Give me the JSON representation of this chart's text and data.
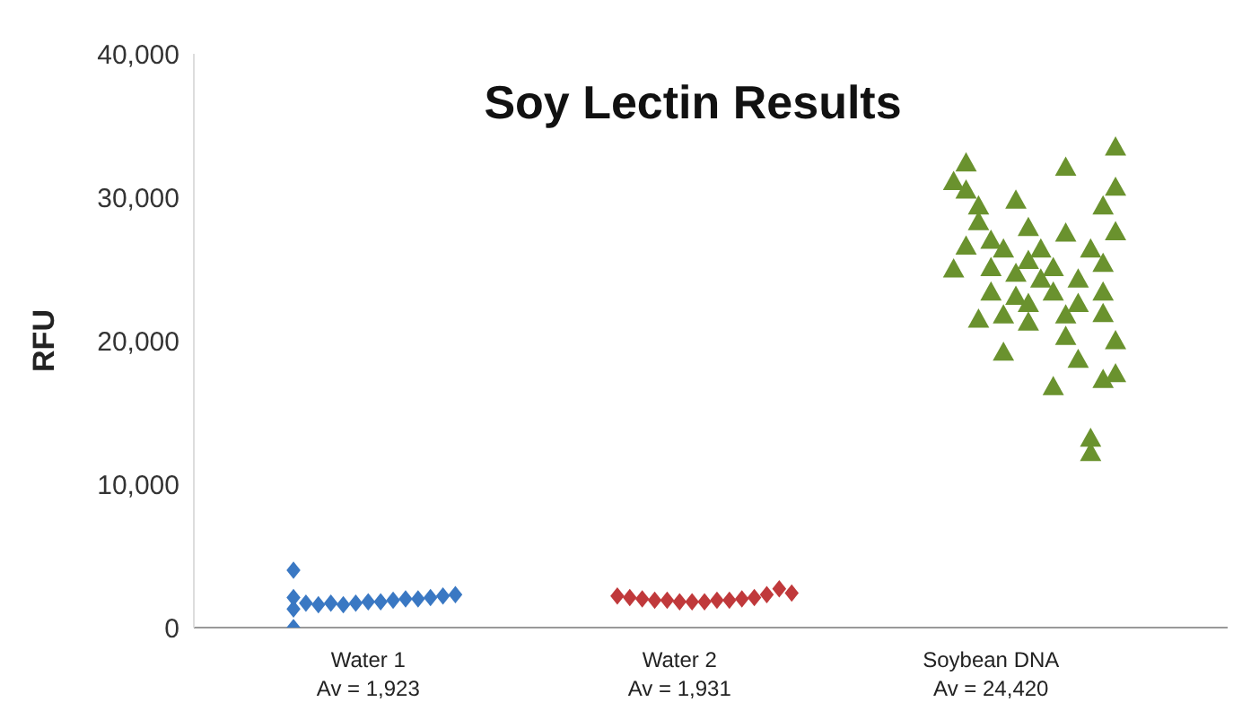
{
  "chart_data": {
    "type": "scatter",
    "title": "Soy Lectin Results",
    "ylabel": "RFU",
    "categories": [
      null,
      null,
      null,
      null,
      null,
      null,
      null,
      null,
      null,
      null,
      null,
      null,
      "Water 1\nAv = 1,923",
      null,
      null,
      null,
      null,
      null,
      null,
      null,
      null,
      null,
      null,
      null,
      null,
      null,
      null,
      null,
      null,
      null,
      null,
      null,
      null,
      null,
      null,
      null,
      null,
      "Water 2\nAv = 1,931",
      null,
      null,
      null,
      null,
      null,
      null,
      null,
      null,
      null,
      null,
      null,
      null,
      null,
      null,
      null,
      null,
      null,
      null,
      null,
      null,
      null,
      null,
      null,
      null,
      "Soybean DNA\nAv = 24,420",
      null,
      null,
      null,
      null,
      null,
      null,
      null,
      null,
      null,
      null,
      null,
      null
    ],
    "ylim": [
      0,
      40000
    ],
    "yticks": [
      {
        "value": 0,
        "label": "0"
      },
      {
        "value": 10000,
        "label": "10,000"
      },
      {
        "value": 20000,
        "label": "20,000"
      },
      {
        "value": 30000,
        "label": "30,000"
      },
      {
        "value": 40000,
        "label": "40,000"
      }
    ],
    "grid": false,
    "legend": false,
    "series": [
      {
        "color": "#3a78c3",
        "marker": "diamond",
        "values": [
          null,
          null,
          null,
          null,
          null,
          null,
          2100,
          1700,
          1600,
          1700,
          1600,
          1700,
          1800,
          1800,
          1900,
          2000,
          2000,
          2100,
          2200,
          2300,
          null,
          null,
          null,
          null,
          null,
          null,
          null,
          null,
          null,
          null,
          null,
          null,
          null,
          null,
          null,
          null,
          null,
          null,
          null,
          null,
          null,
          null,
          null,
          null,
          null,
          null,
          null,
          null,
          null,
          null,
          null,
          null,
          null,
          null,
          null,
          null,
          null,
          null,
          null,
          null,
          null,
          null,
          null,
          null,
          null,
          null,
          null,
          null,
          null,
          null,
          null,
          null,
          null,
          null,
          null
        ]
      },
      {
        "color": "#3a78c3",
        "marker": "diamond",
        "values": [
          null,
          null,
          null,
          null,
          null,
          null,
          4000,
          null,
          null,
          null,
          null,
          null,
          null,
          null,
          null,
          null,
          null,
          null,
          null,
          null,
          null,
          null,
          null,
          null,
          null,
          null,
          null,
          null,
          null,
          null,
          null,
          null,
          null,
          null,
          null,
          null,
          null,
          null,
          null,
          null,
          null,
          null,
          null,
          null,
          null,
          null,
          null,
          null,
          null,
          null,
          null,
          null,
          null,
          null,
          null,
          null,
          null,
          null,
          null,
          null,
          null,
          null,
          null,
          null,
          null,
          null,
          null,
          null,
          null,
          null,
          null,
          null,
          null,
          null,
          null
        ]
      },
      {
        "color": "#3a78c3",
        "marker": "diamond",
        "values": [
          null,
          null,
          null,
          null,
          null,
          null,
          1300,
          null,
          null,
          null,
          null,
          null,
          null,
          null,
          null,
          null,
          null,
          null,
          null,
          null,
          null,
          null,
          null,
          null,
          null,
          null,
          null,
          null,
          null,
          null,
          null,
          null,
          null,
          null,
          null,
          null,
          null,
          null,
          null,
          null,
          null,
          null,
          null,
          null,
          null,
          null,
          null,
          null,
          null,
          null,
          null,
          null,
          null,
          null,
          null,
          null,
          null,
          null,
          null,
          null,
          null,
          null,
          null,
          null,
          null,
          null,
          null,
          null,
          null,
          null,
          null,
          null,
          null,
          null,
          null
        ]
      },
      {
        "color": "#3a78c3",
        "marker": "diamond",
        "values": [
          null,
          null,
          null,
          null,
          null,
          null,
          0,
          null,
          null,
          null,
          null,
          null,
          null,
          null,
          null,
          null,
          null,
          null,
          null,
          null,
          null,
          null,
          null,
          null,
          null,
          null,
          null,
          null,
          null,
          null,
          null,
          null,
          null,
          null,
          null,
          null,
          null,
          null,
          null,
          null,
          null,
          null,
          null,
          null,
          null,
          null,
          null,
          null,
          null,
          null,
          null,
          null,
          null,
          null,
          null,
          null,
          null,
          null,
          null,
          null,
          null,
          null,
          null,
          null,
          null,
          null,
          null,
          null,
          null,
          null,
          null,
          null,
          null,
          null,
          null
        ]
      },
      {
        "color": "#c0393b",
        "marker": "diamond",
        "values": [
          null,
          null,
          null,
          null,
          null,
          null,
          null,
          null,
          null,
          null,
          null,
          null,
          null,
          null,
          null,
          null,
          null,
          null,
          null,
          null,
          null,
          null,
          null,
          null,
          null,
          null,
          null,
          null,
          null,
          null,
          null,
          null,
          2200,
          2100,
          2000,
          1900,
          1900,
          1800,
          1800,
          1800,
          1900,
          1900,
          2000,
          2100,
          2300,
          2700,
          2400,
          null,
          null,
          null,
          null,
          null,
          null,
          null,
          null,
          null,
          null,
          null,
          null,
          null,
          null,
          null,
          null,
          null,
          null,
          null,
          null,
          null,
          null,
          null,
          null,
          null,
          null,
          null,
          null
        ]
      },
      {
        "color": "#6a922e",
        "marker": "triangle",
        "values": [
          null,
          null,
          null,
          null,
          null,
          null,
          null,
          null,
          null,
          null,
          null,
          null,
          null,
          null,
          null,
          null,
          null,
          null,
          null,
          null,
          null,
          null,
          null,
          null,
          null,
          null,
          null,
          null,
          null,
          null,
          null,
          null,
          null,
          null,
          null,
          null,
          null,
          null,
          null,
          null,
          null,
          null,
          null,
          null,
          null,
          null,
          null,
          null,
          null,
          null,
          null,
          null,
          null,
          null,
          null,
          null,
          null,
          null,
          null,
          31100,
          32400,
          29400,
          27000,
          19200,
          29800,
          27900,
          26400,
          25100,
          32100,
          24300,
          26400,
          29400,
          33500,
          null,
          null
        ]
      },
      {
        "color": "#6a922e",
        "marker": "triangle",
        "values": [
          null,
          null,
          null,
          null,
          null,
          null,
          null,
          null,
          null,
          null,
          null,
          null,
          null,
          null,
          null,
          null,
          null,
          null,
          null,
          null,
          null,
          null,
          null,
          null,
          null,
          null,
          null,
          null,
          null,
          null,
          null,
          null,
          null,
          null,
          null,
          null,
          null,
          null,
          null,
          null,
          null,
          null,
          null,
          null,
          null,
          null,
          null,
          null,
          null,
          null,
          null,
          null,
          null,
          null,
          null,
          null,
          null,
          null,
          null,
          25000,
          30500,
          28300,
          25100,
          26400,
          23100,
          25600,
          24300,
          23400,
          27500,
          18700,
          13200,
          25400,
          30700,
          null,
          null
        ]
      },
      {
        "color": "#6a922e",
        "marker": "triangle",
        "values": [
          null,
          null,
          null,
          null,
          null,
          null,
          null,
          null,
          null,
          null,
          null,
          null,
          null,
          null,
          null,
          null,
          null,
          null,
          null,
          null,
          null,
          null,
          null,
          null,
          null,
          null,
          null,
          null,
          null,
          null,
          null,
          null,
          null,
          null,
          null,
          null,
          null,
          null,
          null,
          null,
          null,
          null,
          null,
          null,
          null,
          null,
          null,
          null,
          null,
          null,
          null,
          null,
          null,
          null,
          null,
          null,
          null,
          null,
          null,
          null,
          26600,
          21500,
          23400,
          21800,
          24700,
          22600,
          null,
          16800,
          20300,
          22600,
          12200,
          23400,
          27600,
          null,
          null
        ]
      },
      {
        "color": "#6a922e",
        "marker": "triangle",
        "values": [
          null,
          null,
          null,
          null,
          null,
          null,
          null,
          null,
          null,
          null,
          null,
          null,
          null,
          null,
          null,
          null,
          null,
          null,
          null,
          null,
          null,
          null,
          null,
          null,
          null,
          null,
          null,
          null,
          null,
          null,
          null,
          null,
          null,
          null,
          null,
          null,
          null,
          null,
          null,
          null,
          null,
          null,
          null,
          null,
          null,
          null,
          null,
          null,
          null,
          null,
          null,
          null,
          null,
          null,
          null,
          null,
          null,
          null,
          null,
          null,
          null,
          null,
          null,
          null,
          null,
          21300,
          null,
          null,
          21800,
          null,
          null,
          21900,
          20000,
          null,
          null
        ]
      },
      {
        "color": "#6a922e",
        "marker": "triangle",
        "values": [
          null,
          null,
          null,
          null,
          null,
          null,
          null,
          null,
          null,
          null,
          null,
          null,
          null,
          null,
          null,
          null,
          null,
          null,
          null,
          null,
          null,
          null,
          null,
          null,
          null,
          null,
          null,
          null,
          null,
          null,
          null,
          null,
          null,
          null,
          null,
          null,
          null,
          null,
          null,
          null,
          null,
          null,
          null,
          null,
          null,
          null,
          null,
          null,
          null,
          null,
          null,
          null,
          null,
          null,
          null,
          null,
          null,
          null,
          null,
          null,
          null,
          null,
          null,
          null,
          null,
          null,
          null,
          null,
          null,
          null,
          null,
          17300,
          17700,
          null,
          null
        ]
      }
    ]
  }
}
